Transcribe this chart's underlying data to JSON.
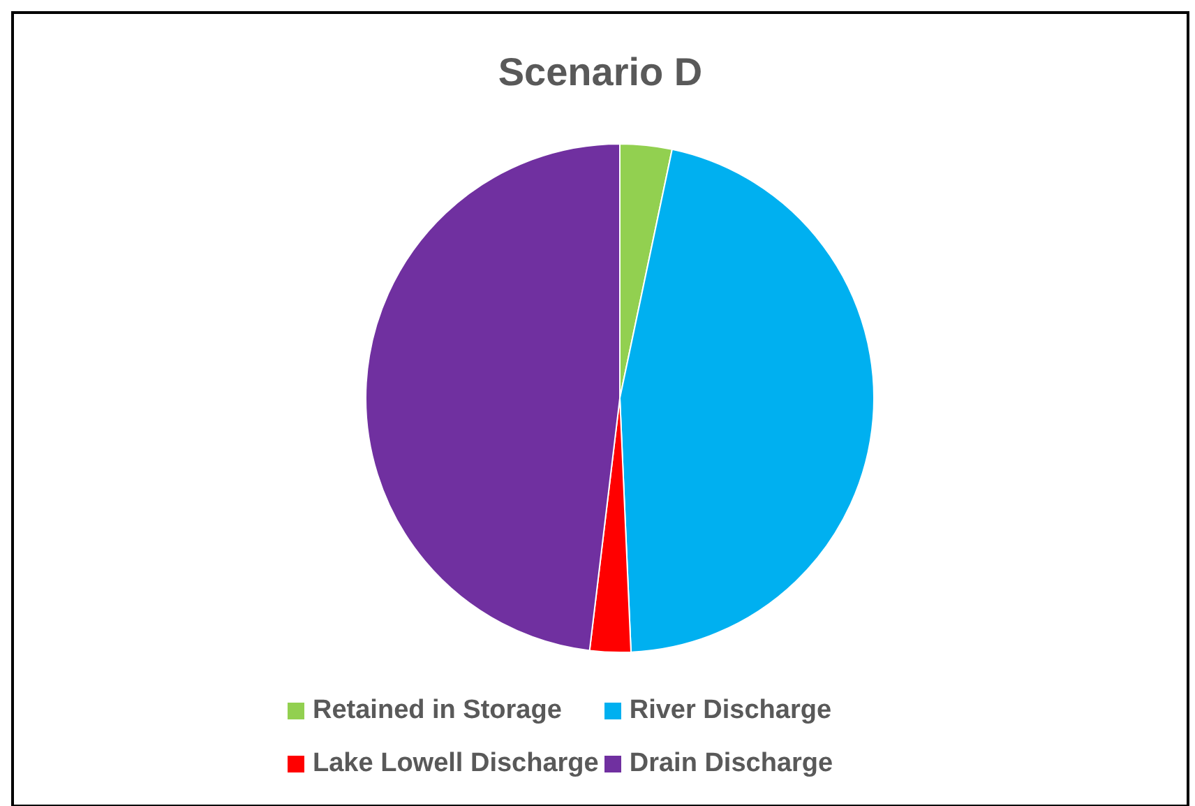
{
  "chart_data": {
    "type": "pie",
    "title": "Scenario D",
    "categories": [
      "Retained in Storage",
      "River Discharge",
      "Lake Lowell Discharge",
      "Drain Discharge"
    ],
    "values": [
      3.3,
      46,
      2.6,
      48.1
    ],
    "colors": [
      "#92d050",
      "#00b0f0",
      "#ff0000",
      "#7030a0"
    ],
    "legend": "bottom"
  }
}
